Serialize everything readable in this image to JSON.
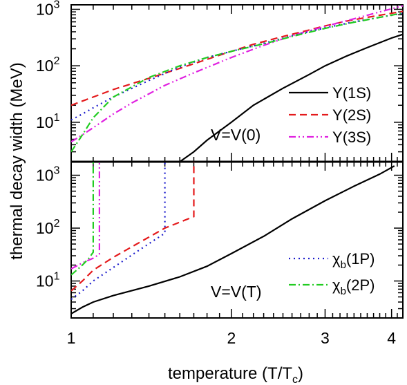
{
  "chart_data": {
    "type": "line",
    "xlabel": "temperature (T/T",
    "xlabel_sub": "c",
    "xlabel_close": ")",
    "ylabel": "thermal decay width (MeV)",
    "x_scale": "log",
    "y_scale": "log",
    "xlim": [
      1,
      4.2
    ],
    "x_ticks": [
      1,
      2,
      3,
      4
    ],
    "x_tick_labels": [
      "1",
      "2",
      "3",
      "4"
    ],
    "panels": [
      {
        "annotation": "V=V(0)",
        "ylim": [
          2,
          1200
        ],
        "y_major_ticks": [
          10,
          100,
          1000
        ],
        "y_tick_mantissa": "10",
        "y_tick_exponents": [
          "1",
          "2",
          "3"
        ],
        "legend_position": "bottom-right",
        "series": [
          {
            "legend_main": "Υ",
            "legend_rest": "(1S)",
            "color": "#000000",
            "dash": "",
            "x": [
              1.6,
              1.7,
              1.8,
              2.0,
              2.2,
              2.5,
              2.8,
              3.0,
              3.3,
              3.6,
              4.0,
              4.2
            ],
            "y": [
              2.0,
              3.0,
              4.8,
              10,
              20,
              40,
              70,
              100,
              150,
              210,
              310,
              360
            ]
          },
          {
            "legend_main": "Υ",
            "legend_rest": "(2S)",
            "color": "#e41a1c",
            "dash": "10,6",
            "x": [
              1.0,
              1.1,
              1.2,
              1.4,
              1.6,
              1.8,
              2.0,
              2.2,
              2.5,
              2.8,
              3.0,
              3.3,
              3.6,
              4.0,
              4.2
            ],
            "y": [
              20,
              28,
              38,
              60,
              90,
              130,
              180,
              240,
              330,
              430,
              510,
              620,
              720,
              850,
              920
            ]
          },
          {
            "legend_main": "Υ",
            "legend_rest": "(3S)",
            "color": "#e020e0",
            "dash": "10,4,2,4,2,4",
            "x": [
              1.0,
              1.05,
              1.1,
              1.2,
              1.3,
              1.5,
              1.7,
              2.0,
              2.3,
              2.6,
              3.0,
              3.4,
              3.8,
              4.2
            ],
            "y": [
              4.5,
              6.0,
              8.0,
              14,
              22,
              45,
              75,
              140,
              230,
              340,
              500,
              680,
              900,
              1150
            ]
          },
          {
            "legend_main": "χ",
            "legend_sub": "b",
            "legend_rest": "(1P)",
            "color": "#1a1acc",
            "dash": "2,5",
            "x": [
              1.0,
              1.05,
              1.1,
              1.2,
              1.4,
              1.6,
              1.8,
              2.0,
              2.3,
              2.6,
              3.0,
              3.4,
              3.8,
              4.2
            ],
            "y": [
              11,
              14,
              18,
              28,
              55,
              95,
              140,
              180,
              250,
              340,
              470,
              600,
              720,
              850
            ]
          },
          {
            "legend_main": "χ",
            "legend_sub": "b",
            "legend_rest": "(2P)",
            "color": "#22cc22",
            "dash": "10,4,2,4",
            "x": [
              1.0,
              1.05,
              1.1,
              1.2,
              1.4,
              1.6,
              1.8,
              2.0,
              2.3,
              2.6,
              3.0,
              3.4,
              3.8,
              4.2
            ],
            "y": [
              3.0,
              6.0,
              12,
              28,
              62,
              100,
              140,
              180,
              245,
              330,
              460,
              590,
              720,
              860
            ]
          }
        ]
      },
      {
        "annotation": "V=V(T)",
        "ylim": [
          2,
          1800
        ],
        "y_major_ticks": [
          10,
          100,
          1000
        ],
        "y_tick_mantissa": "10",
        "y_tick_exponents": [
          "1",
          "2",
          "3"
        ],
        "legend_position": "bottom-right",
        "series": [
          {
            "legend_main": "Υ",
            "legend_rest": "(1S)",
            "color": "#000000",
            "dash": "",
            "x": [
              1.0,
              1.05,
              1.1,
              1.2,
              1.4,
              1.6,
              1.8,
              2.0,
              2.3,
              2.6,
              3.0,
              3.4,
              3.8,
              4.05
            ],
            "y": [
              2.4,
              3.2,
              4.0,
              5.3,
              8.0,
              12,
              19,
              33,
              70,
              150,
              330,
              620,
              1050,
              1500
            ]
          },
          {
            "legend_main": "Υ",
            "legend_rest": "(2S)",
            "color": "#e41a1c",
            "dash": "10,6",
            "x": [
              1.0,
              1.05,
              1.1,
              1.2,
              1.35,
              1.5,
              1.7,
              1.7
            ],
            "y": [
              6.5,
              10,
              16,
              28,
              55,
              100,
              165,
              1800
            ]
          },
          {
            "legend_main": "Υ",
            "legend_rest": "(3S)",
            "color": "#e020e0",
            "dash": "10,4,2,4,2,4",
            "x": [
              1.0,
              1.05,
              1.1,
              1.13,
              1.13
            ],
            "y": [
              17,
              22,
              27,
              32,
              1800
            ]
          },
          {
            "legend_main": "χ",
            "legend_sub": "b",
            "legend_rest": "(1P)",
            "color": "#1a1acc",
            "dash": "2,5",
            "x": [
              1.0,
              1.05,
              1.1,
              1.2,
              1.35,
              1.5,
              1.5
            ],
            "y": [
              4.5,
              6.5,
              10,
              18,
              40,
              80,
              1800
            ]
          },
          {
            "legend_main": "χ",
            "legend_sub": "b",
            "legend_rest": "(2P)",
            "color": "#22cc22",
            "dash": "10,4,2,4",
            "x": [
              1.0,
              1.05,
              1.08,
              1.1,
              1.1
            ],
            "y": [
              13,
              20,
              27,
              35,
              1800
            ]
          }
        ]
      }
    ]
  }
}
